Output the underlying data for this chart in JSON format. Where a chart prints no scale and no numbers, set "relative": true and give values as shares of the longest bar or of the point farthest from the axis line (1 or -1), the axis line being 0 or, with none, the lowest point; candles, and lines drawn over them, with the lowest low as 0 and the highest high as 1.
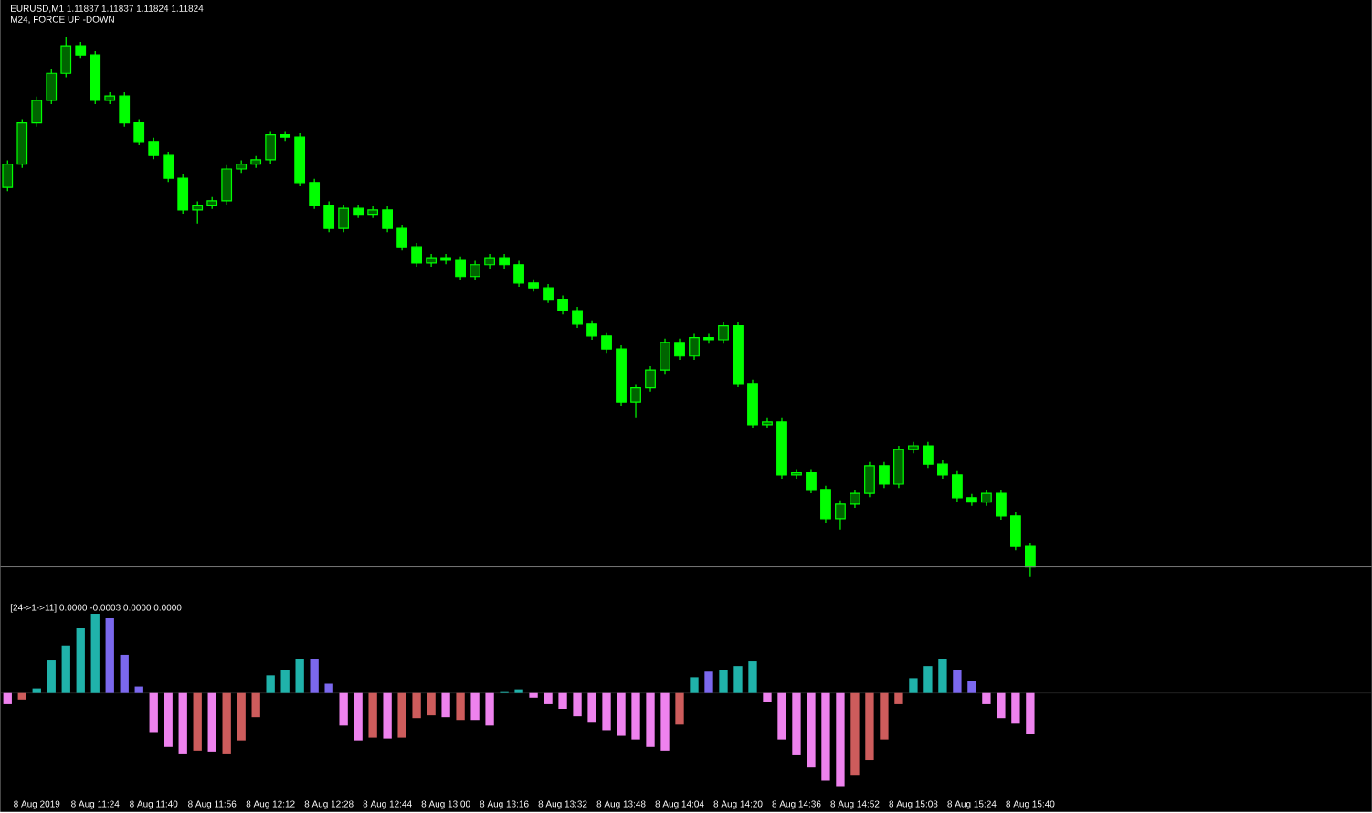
{
  "chart_data": [
    {
      "type": "candlestick",
      "title": "EURUSD,M1 1.11837 1.11837 1.11824 1.11824",
      "subtitle": "M24, FORCE UP -DOWN",
      "relative": true,
      "color": "#00ff00",
      "tick_labels": false,
      "categories": [
        null,
        null,
        null,
        null,
        null,
        null,
        null,
        null,
        null,
        null,
        null,
        null,
        null,
        null,
        null,
        null,
        null,
        null,
        null,
        null,
        null,
        null,
        null,
        null,
        null,
        null,
        null,
        null,
        null,
        null,
        null,
        null,
        null,
        null,
        null,
        null,
        null,
        null,
        null,
        null,
        null,
        null,
        null,
        null,
        null,
        null,
        null,
        null,
        null,
        null,
        null,
        null,
        null,
        null,
        null,
        null,
        null,
        null,
        null,
        null,
        null,
        null,
        null,
        null,
        null,
        null,
        null,
        null,
        null,
        null,
        null
      ],
      "ohlc": [
        [
          0.721,
          0.771,
          0.714,
          0.764
        ],
        [
          0.764,
          0.847,
          0.757,
          0.84
        ],
        [
          0.84,
          0.889,
          0.833,
          0.882
        ],
        [
          0.882,
          0.939,
          0.875,
          0.932
        ],
        [
          0.932,
          1.0,
          0.925,
          0.983
        ],
        [
          0.983,
          0.99,
          0.959,
          0.966
        ],
        [
          0.966,
          0.973,
          0.875,
          0.882
        ],
        [
          0.882,
          0.897,
          0.875,
          0.89
        ],
        [
          0.89,
          0.897,
          0.833,
          0.84
        ],
        [
          0.84,
          0.847,
          0.799,
          0.806
        ],
        [
          0.806,
          0.813,
          0.773,
          0.78
        ],
        [
          0.78,
          0.787,
          0.731,
          0.738
        ],
        [
          0.738,
          0.745,
          0.672,
          0.679
        ],
        [
          0.679,
          0.695,
          0.654,
          0.688
        ],
        [
          0.688,
          0.703,
          0.681,
          0.696
        ],
        [
          0.696,
          0.762,
          0.689,
          0.755
        ],
        [
          0.755,
          0.771,
          0.748,
          0.764
        ],
        [
          0.764,
          0.779,
          0.757,
          0.772
        ],
        [
          0.772,
          0.825,
          0.765,
          0.818
        ],
        [
          0.818,
          0.825,
          0.807,
          0.814
        ],
        [
          0.814,
          0.821,
          0.723,
          0.73
        ],
        [
          0.73,
          0.737,
          0.681,
          0.688
        ],
        [
          0.688,
          0.695,
          0.638,
          0.645
        ],
        [
          0.645,
          0.689,
          0.638,
          0.682
        ],
        [
          0.682,
          0.689,
          0.664,
          0.671
        ],
        [
          0.671,
          0.686,
          0.664,
          0.679
        ],
        [
          0.679,
          0.686,
          0.638,
          0.645
        ],
        [
          0.645,
          0.652,
          0.604,
          0.611
        ],
        [
          0.611,
          0.618,
          0.574,
          0.581
        ],
        [
          0.581,
          0.598,
          0.574,
          0.591
        ],
        [
          0.591,
          0.598,
          0.579,
          0.586
        ],
        [
          0.586,
          0.593,
          0.549,
          0.556
        ],
        [
          0.556,
          0.585,
          0.549,
          0.578
        ],
        [
          0.578,
          0.598,
          0.571,
          0.591
        ],
        [
          0.591,
          0.598,
          0.571,
          0.578
        ],
        [
          0.578,
          0.585,
          0.537,
          0.544
        ],
        [
          0.544,
          0.551,
          0.528,
          0.535
        ],
        [
          0.535,
          0.542,
          0.507,
          0.514
        ],
        [
          0.514,
          0.521,
          0.486,
          0.493
        ],
        [
          0.493,
          0.5,
          0.461,
          0.468
        ],
        [
          0.468,
          0.475,
          0.439,
          0.446
        ],
        [
          0.446,
          0.453,
          0.415,
          0.422
        ],
        [
          0.422,
          0.429,
          0.317,
          0.324
        ],
        [
          0.324,
          0.357,
          0.294,
          0.35
        ],
        [
          0.35,
          0.39,
          0.343,
          0.383
        ],
        [
          0.383,
          0.441,
          0.376,
          0.434
        ],
        [
          0.434,
          0.441,
          0.402,
          0.409
        ],
        [
          0.409,
          0.45,
          0.402,
          0.443
        ],
        [
          0.443,
          0.45,
          0.432,
          0.439
        ],
        [
          0.439,
          0.472,
          0.432,
          0.465
        ],
        [
          0.465,
          0.472,
          0.351,
          0.358
        ],
        [
          0.358,
          0.365,
          0.275,
          0.282
        ],
        [
          0.282,
          0.294,
          0.275,
          0.287
        ],
        [
          0.287,
          0.294,
          0.182,
          0.189
        ],
        [
          0.189,
          0.2,
          0.182,
          0.193
        ],
        [
          0.193,
          0.2,
          0.155,
          0.162
        ],
        [
          0.162,
          0.169,
          0.101,
          0.108
        ],
        [
          0.108,
          0.142,
          0.088,
          0.135
        ],
        [
          0.135,
          0.162,
          0.128,
          0.155
        ],
        [
          0.155,
          0.213,
          0.148,
          0.206
        ],
        [
          0.206,
          0.213,
          0.165,
          0.172
        ],
        [
          0.172,
          0.243,
          0.165,
          0.236
        ],
        [
          0.236,
          0.25,
          0.229,
          0.243
        ],
        [
          0.243,
          0.25,
          0.202,
          0.209
        ],
        [
          0.209,
          0.216,
          0.182,
          0.189
        ],
        [
          0.189,
          0.196,
          0.14,
          0.147
        ],
        [
          0.147,
          0.154,
          0.132,
          0.139
        ],
        [
          0.139,
          0.162,
          0.132,
          0.155
        ],
        [
          0.155,
          0.162,
          0.106,
          0.113
        ],
        [
          0.113,
          0.12,
          0.05,
          0.057
        ],
        [
          0.057,
          0.064,
          0,
          0.019
        ]
      ],
      "ref_lines": [
        {
          "axis": "y",
          "value": 0.019,
          "color": "#808080"
        }
      ]
    },
    {
      "type": "bar",
      "title": "[24->1->11] 0.0000 -0.0003 0.0000 0.0000",
      "relative": true,
      "tick_labels": "x",
      "categories": [
        null,
        null,
        "8 Aug 2019",
        null,
        null,
        null,
        "8 Aug 11:24",
        null,
        null,
        null,
        "8 Aug 11:40",
        null,
        null,
        null,
        "8 Aug 11:56",
        null,
        null,
        null,
        "8 Aug 12:12",
        null,
        null,
        null,
        "8 Aug 12:28",
        null,
        null,
        null,
        "8 Aug 12:44",
        null,
        null,
        null,
        "8 Aug 13:00",
        null,
        null,
        null,
        "8 Aug 13:16",
        null,
        null,
        null,
        "8 Aug 13:32",
        null,
        null,
        null,
        "8 Aug 13:48",
        null,
        null,
        null,
        "8 Aug 14:04",
        null,
        null,
        null,
        "8 Aug 14:20",
        null,
        null,
        null,
        "8 Aug 14:36",
        null,
        null,
        null,
        "8 Aug 14:52",
        null,
        null,
        null,
        "8 Aug 15:08",
        null,
        null,
        null,
        "8 Aug 15:24",
        null,
        null,
        null,
        "8 Aug 15:40"
      ],
      "values": [
        -0.12,
        -0.07,
        0.05,
        0.35,
        0.51,
        0.7,
        0.85,
        0.81,
        0.41,
        0.07,
        -0.42,
        -0.58,
        -0.65,
        -0.62,
        -0.63,
        -0.65,
        -0.51,
        -0.26,
        0.19,
        0.25,
        0.37,
        0.37,
        0.1,
        -0.35,
        -0.51,
        -0.48,
        -0.49,
        -0.48,
        -0.27,
        -0.24,
        -0.26,
        -0.29,
        -0.29,
        -0.35,
        0.02,
        0.04,
        -0.05,
        -0.12,
        -0.17,
        -0.25,
        -0.31,
        -0.4,
        -0.46,
        -0.5,
        -0.58,
        -0.62,
        -0.34,
        0.17,
        0.23,
        0.25,
        0.29,
        0.34,
        -0.1,
        -0.5,
        -0.66,
        -0.8,
        -0.94,
        -1.0,
        -0.88,
        -0.72,
        -0.5,
        -0.12,
        0.16,
        0.29,
        0.37,
        0.25,
        0.13,
        -0.12,
        -0.27,
        -0.33,
        -0.44
      ],
      "colors": [
        "#ee82ee",
        "#cd5c5c",
        "#20b2aa",
        "#20b2aa",
        "#20b2aa",
        "#20b2aa",
        "#20b2aa",
        "#7b68ee",
        "#7b68ee",
        "#7b68ee",
        "#ee82ee",
        "#ee82ee",
        "#ee82ee",
        "#cd5c5c",
        "#ee82ee",
        "#cd5c5c",
        "#cd5c5c",
        "#cd5c5c",
        "#20b2aa",
        "#20b2aa",
        "#20b2aa",
        "#7b68ee",
        "#7b68ee",
        "#ee82ee",
        "#ee82ee",
        "#cd5c5c",
        "#ee82ee",
        "#cd5c5c",
        "#cd5c5c",
        "#cd5c5c",
        "#ee82ee",
        "#cd5c5c",
        "#ee82ee",
        "#ee82ee",
        "#20b2aa",
        "#20b2aa",
        "#ee82ee",
        "#ee82ee",
        "#ee82ee",
        "#ee82ee",
        "#ee82ee",
        "#ee82ee",
        "#ee82ee",
        "#ee82ee",
        "#ee82ee",
        "#ee82ee",
        "#cd5c5c",
        "#20b2aa",
        "#7b68ee",
        "#20b2aa",
        "#20b2aa",
        "#20b2aa",
        "#ee82ee",
        "#ee82ee",
        "#ee82ee",
        "#ee82ee",
        "#ee82ee",
        "#ee82ee",
        "#cd5c5c",
        "#cd5c5c",
        "#cd5c5c",
        "#cd5c5c",
        "#20b2aa",
        "#20b2aa",
        "#20b2aa",
        "#7b68ee",
        "#7b68ee",
        "#ee82ee",
        "#ee82ee",
        "#ee82ee",
        "#ee82ee"
      ]
    }
  ]
}
